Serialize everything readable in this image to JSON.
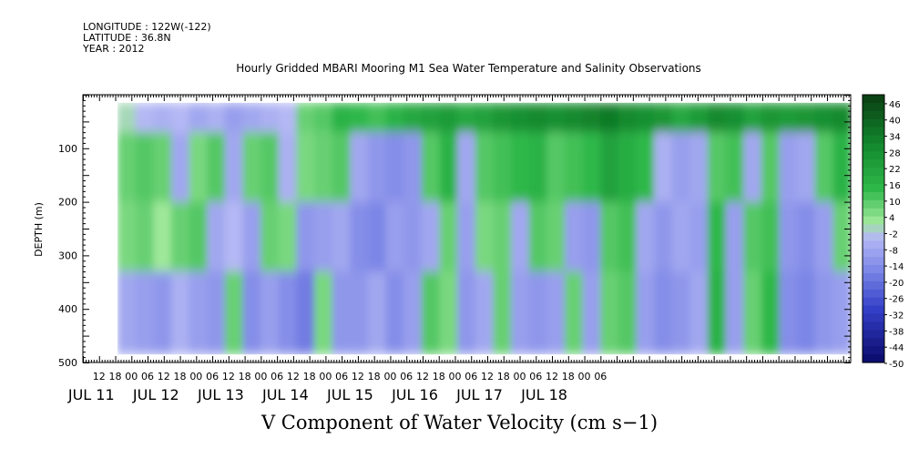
{
  "header": {
    "longitude": "LONGITUDE : 122W(-122)",
    "latitude": "LATITUDE : 36.8N",
    "year": "YEAR : 2012"
  },
  "chart_data": {
    "type": "heatmap",
    "title": "Hourly Gridded MBARI Mooring M1 Sea Water Temperature and Salinity Observations",
    "bottom_title": "V Component of Water Velocity (cm s−1)",
    "ylabel": "DEPTH (m)",
    "yticks": [
      "100",
      "200",
      "300",
      "400",
      "500"
    ],
    "ylim": [
      500,
      0
    ],
    "xtick_hours": [
      "12",
      "18",
      "00",
      "06",
      "12",
      "18",
      "00",
      "06",
      "12",
      "18",
      "00",
      "06",
      "12",
      "18",
      "00",
      "06",
      "12",
      "18",
      "00",
      "06",
      "12",
      "18",
      "00",
      "06",
      "12",
      "18",
      "00",
      "06",
      "12",
      "18",
      "00",
      "06"
    ],
    "day_labels": [
      "JUL 11",
      "JUL 12",
      "JUL 13",
      "JUL 14",
      "JUL 15",
      "JUL 16",
      "JUL 17",
      "JUL 18"
    ],
    "colorbar": {
      "labels": [
        "46",
        "40",
        "34",
        "28",
        "22",
        "16",
        "10",
        "4",
        "-2",
        "-8",
        "-14",
        "-20",
        "-26",
        "-32",
        "-38",
        "-44",
        "-50"
      ],
      "min": -50,
      "max": 49,
      "colors": {
        "dark_green": "#0a3d12",
        "mid_green": "#2fb84a",
        "light_green": "#9ee89a",
        "light_blue": "#b4b8f4",
        "mid_blue": "#7c86e6",
        "dark_blue": "#0a0a6a"
      }
    },
    "data_extent_depth_m": [
      15,
      485
    ],
    "columns": [
      {
        "time": "JUL 11 16",
        "surface": 0,
        "upper": 8,
        "mid": 6,
        "deep": -8
      },
      {
        "time": "JUL 11 20",
        "surface": -4,
        "upper": 10,
        "mid": 8,
        "deep": -10
      },
      {
        "time": "JUL 12 00",
        "surface": -6,
        "upper": 8,
        "mid": 2,
        "deep": -12
      },
      {
        "time": "JUL 12 04",
        "surface": -4,
        "upper": -8,
        "mid": 8,
        "deep": -6
      },
      {
        "time": "JUL 12 08",
        "surface": -8,
        "upper": 6,
        "mid": 10,
        "deep": -10
      },
      {
        "time": "JUL 12 12",
        "surface": -6,
        "upper": 10,
        "mid": -8,
        "deep": -12
      },
      {
        "time": "JUL 12 16",
        "surface": -10,
        "upper": -8,
        "mid": -4,
        "deep": 8
      },
      {
        "time": "JUL 12 20",
        "surface": -8,
        "upper": 8,
        "mid": -10,
        "deep": -14
      },
      {
        "time": "JUL 13 00",
        "surface": -6,
        "upper": 10,
        "mid": 8,
        "deep": -10
      },
      {
        "time": "JUL 13 04",
        "surface": -4,
        "upper": -6,
        "mid": 6,
        "deep": -14
      },
      {
        "time": "JUL 13 08",
        "surface": 8,
        "upper": 6,
        "mid": -12,
        "deep": -18
      },
      {
        "time": "JUL 13 12",
        "surface": 10,
        "upper": 8,
        "mid": -10,
        "deep": 6
      },
      {
        "time": "JUL 13 16",
        "surface": 16,
        "upper": 10,
        "mid": -8,
        "deep": -12
      },
      {
        "time": "JUL 13 20",
        "surface": 14,
        "upper": -8,
        "mid": -14,
        "deep": -12
      },
      {
        "time": "JUL 14 00",
        "surface": 12,
        "upper": -12,
        "mid": -16,
        "deep": -8
      },
      {
        "time": "JUL 14 04",
        "surface": 16,
        "upper": -14,
        "mid": -10,
        "deep": -14
      },
      {
        "time": "JUL 14 08",
        "surface": 20,
        "upper": -12,
        "mid": -12,
        "deep": -10
      },
      {
        "time": "JUL 14 12",
        "surface": 22,
        "upper": 10,
        "mid": -8,
        "deep": 10
      },
      {
        "time": "JUL 14 16",
        "surface": 24,
        "upper": 16,
        "mid": 8,
        "deep": 6
      },
      {
        "time": "JUL 14 20",
        "surface": 20,
        "upper": -8,
        "mid": -10,
        "deep": -12
      },
      {
        "time": "JUL 15 00",
        "surface": 22,
        "upper": 10,
        "mid": 6,
        "deep": -8
      },
      {
        "time": "JUL 15 04",
        "surface": 26,
        "upper": 12,
        "mid": 8,
        "deep": 8
      },
      {
        "time": "JUL 15 08",
        "surface": 28,
        "upper": 14,
        "mid": -8,
        "deep": -10
      },
      {
        "time": "JUL 15 12",
        "surface": 30,
        "upper": 16,
        "mid": 10,
        "deep": -12
      },
      {
        "time": "JUL 15 16",
        "surface": 28,
        "upper": 10,
        "mid": 8,
        "deep": -10
      },
      {
        "time": "JUL 15 20",
        "surface": 30,
        "upper": 12,
        "mid": -10,
        "deep": 8
      },
      {
        "time": "JUL 16 00",
        "surface": 32,
        "upper": 14,
        "mid": -12,
        "deep": -10
      },
      {
        "time": "JUL 16 04",
        "surface": 34,
        "upper": 22,
        "mid": 10,
        "deep": 8
      },
      {
        "time": "JUL 16 08",
        "surface": 30,
        "upper": 18,
        "mid": 12,
        "deep": 10
      },
      {
        "time": "JUL 16 12",
        "surface": 28,
        "upper": 14,
        "mid": -8,
        "deep": -10
      },
      {
        "time": "JUL 16 16",
        "surface": 26,
        "upper": -6,
        "mid": -12,
        "deep": -14
      },
      {
        "time": "JUL 16 20",
        "surface": 20,
        "upper": -10,
        "mid": -8,
        "deep": -12
      },
      {
        "time": "JUL 17 00",
        "surface": 24,
        "upper": -8,
        "mid": -10,
        "deep": -8
      },
      {
        "time": "JUL 17 04",
        "surface": 30,
        "upper": 10,
        "mid": 14,
        "deep": 16
      },
      {
        "time": "JUL 17 08",
        "surface": 28,
        "upper": 12,
        "mid": -10,
        "deep": -10
      },
      {
        "time": "JUL 17 12",
        "surface": 22,
        "upper": -8,
        "mid": 10,
        "deep": 8
      },
      {
        "time": "JUL 17 16",
        "surface": 26,
        "upper": 10,
        "mid": 12,
        "deep": 14
      },
      {
        "time": "JUL 17 20",
        "surface": 24,
        "upper": -10,
        "mid": -12,
        "deep": -14
      },
      {
        "time": "JUL 18 00",
        "surface": 26,
        "upper": -8,
        "mid": -14,
        "deep": -16
      },
      {
        "time": "JUL 18 04",
        "surface": 28,
        "upper": 10,
        "mid": -10,
        "deep": -12
      },
      {
        "time": "JUL 18 08",
        "surface": 30,
        "upper": 16,
        "mid": 8,
        "deep": -10
      }
    ]
  }
}
